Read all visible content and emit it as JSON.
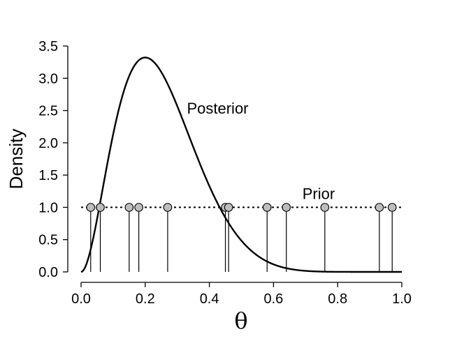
{
  "chart_data": {
    "type": "line",
    "title": "",
    "xlabel": "θ",
    "ylabel": "Density",
    "xlim": [
      0,
      1
    ],
    "ylim": [
      0,
      3.5
    ],
    "x_ticks": [
      0.0,
      0.2,
      0.4,
      0.6,
      0.8,
      1.0
    ],
    "x_tick_labels": [
      "0.0",
      "0.2",
      "0.4",
      "0.6",
      "0.8",
      "1.0"
    ],
    "y_ticks": [
      0.0,
      0.5,
      1.0,
      1.5,
      2.0,
      2.5,
      3.0,
      3.5
    ],
    "y_tick_labels": [
      "0.0",
      "0.5",
      "1.0",
      "1.5",
      "2.0",
      "2.5",
      "3.0",
      "3.5"
    ],
    "grid": false,
    "series": [
      {
        "name": "Posterior",
        "style": "solid",
        "color": "#000000",
        "distribution": "beta",
        "alpha": 3,
        "beta": 9
      },
      {
        "name": "Prior",
        "style": "dotted",
        "color": "#000000",
        "distribution": "uniform",
        "value": 1.0
      }
    ],
    "samples": {
      "values": [
        0.03,
        0.06,
        0.15,
        0.18,
        0.27,
        0.45,
        0.46,
        0.58,
        0.64,
        0.76,
        0.93,
        0.97
      ],
      "marker_y": 1.0,
      "marker_fill": "#bdbdbd",
      "marker_stroke": "#000000"
    },
    "annotations": [
      {
        "text": "Posterior",
        "x": 0.33,
        "y": 2.45
      },
      {
        "text": "Prior",
        "x": 0.69,
        "y": 1.13
      }
    ]
  }
}
